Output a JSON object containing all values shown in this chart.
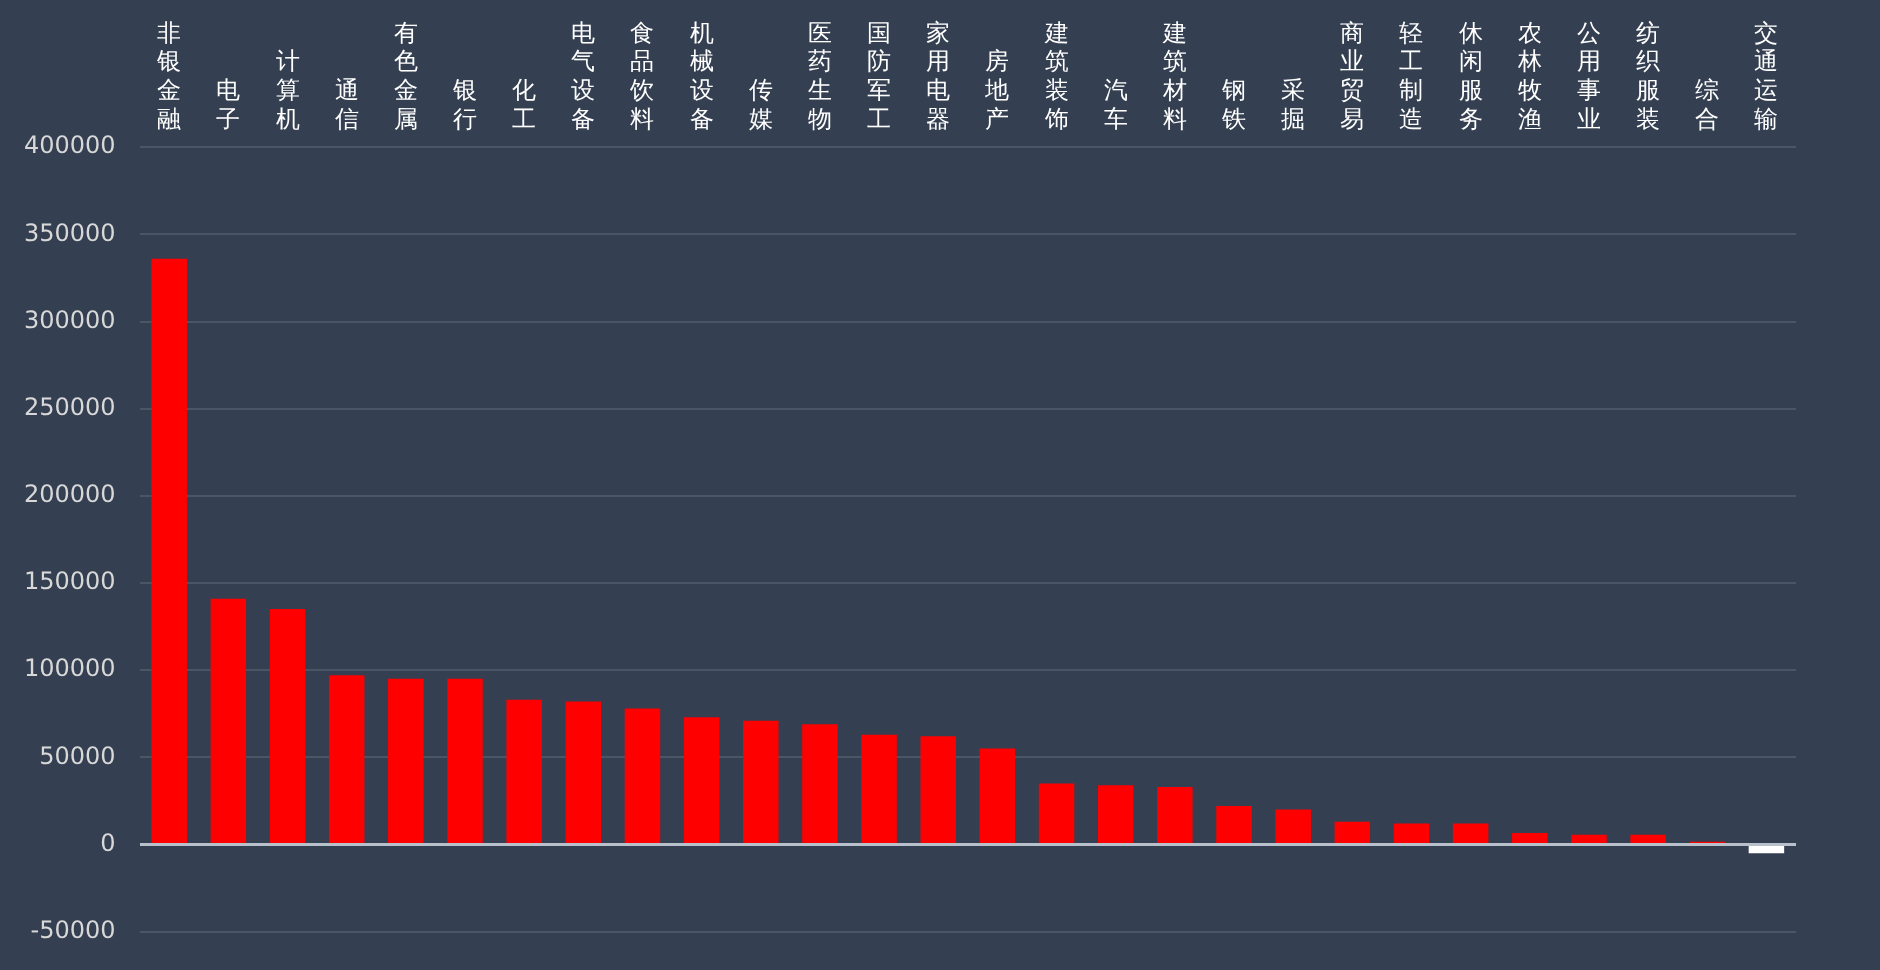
{
  "chart_data": {
    "type": "bar",
    "categories": [
      "非银金融",
      "电子",
      "计算机",
      "通信",
      "有色金属",
      "银行",
      "化工",
      "电气设备",
      "食品饮料",
      "机械设备",
      "传媒",
      "医药生物",
      "国防军工",
      "家用电器",
      "房地产",
      "建筑装饰",
      "汽车",
      "建筑材料",
      "钢铁",
      "采掘",
      "商业贸易",
      "轻工制造",
      "休闲服务",
      "农林牧渔",
      "公用事业",
      "纺织服装",
      "综合",
      "交通运输"
    ],
    "values": [
      336000,
      141000,
      135000,
      97000,
      95000,
      95000,
      83000,
      82000,
      78000,
      73000,
      71000,
      69000,
      63000,
      62000,
      55000,
      35000,
      34000,
      33000,
      22000,
      20000,
      13000,
      12000,
      12000,
      6500,
      5500,
      5500,
      1500,
      -5000
    ],
    "colors": [
      "#ff0000",
      "#ff0000",
      "#ff0000",
      "#ff0000",
      "#ff0000",
      "#ff0000",
      "#ff0000",
      "#ff0000",
      "#ff0000",
      "#ff0000",
      "#ff0000",
      "#ff0000",
      "#ff0000",
      "#ff0000",
      "#ff0000",
      "#ff0000",
      "#ff0000",
      "#ff0000",
      "#ff0000",
      "#ff0000",
      "#ff0000",
      "#ff0000",
      "#ff0000",
      "#ff0000",
      "#ff0000",
      "#ff0000",
      "#ff0000",
      "#ffffff"
    ],
    "ylim": [
      -50000,
      400000
    ],
    "yticks": [
      -50000,
      0,
      50000,
      100000,
      150000,
      200000,
      250000,
      300000,
      350000,
      400000
    ],
    "grid": "y",
    "legend": false
  }
}
